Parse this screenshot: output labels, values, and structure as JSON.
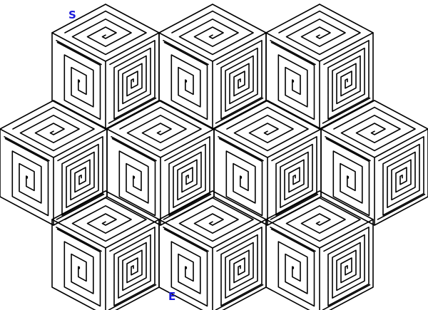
{
  "maze": {
    "start_label": "S",
    "end_label": "E",
    "label_color": "#1a1adb",
    "line_color": "#000000",
    "background": "#ffffff"
  }
}
